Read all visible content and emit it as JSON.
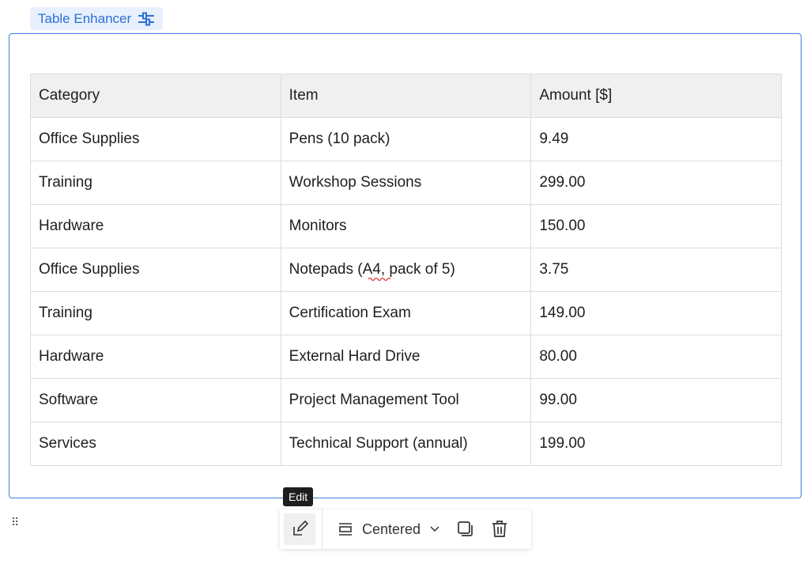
{
  "block_label": {
    "text": "Table Enhancer",
    "icon": "sliders-icon"
  },
  "table": {
    "headers": [
      "Category",
      "Item",
      "Amount [$]"
    ],
    "rows": [
      [
        "Office Supplies",
        "Pens (10 pack)",
        "9.49"
      ],
      [
        "Training",
        "Workshop Sessions",
        "299.00"
      ],
      [
        "Hardware",
        "Monitors",
        "150.00"
      ],
      [
        "Office Supplies",
        "Notepads (A4, pack of 5)",
        "3.75"
      ],
      [
        "Training",
        "Certification Exam",
        "149.00"
      ],
      [
        "Hardware",
        "External Hard Drive",
        "80.00"
      ],
      [
        "Software",
        "Project Management Tool",
        "99.00"
      ],
      [
        "Services",
        "Technical Support (annual)",
        "199.00"
      ]
    ]
  },
  "toolbar": {
    "tooltip": "Edit",
    "alignment": "Centered"
  },
  "colors": {
    "accent": "#3b82e0",
    "label_bg": "#e8f0fe"
  }
}
